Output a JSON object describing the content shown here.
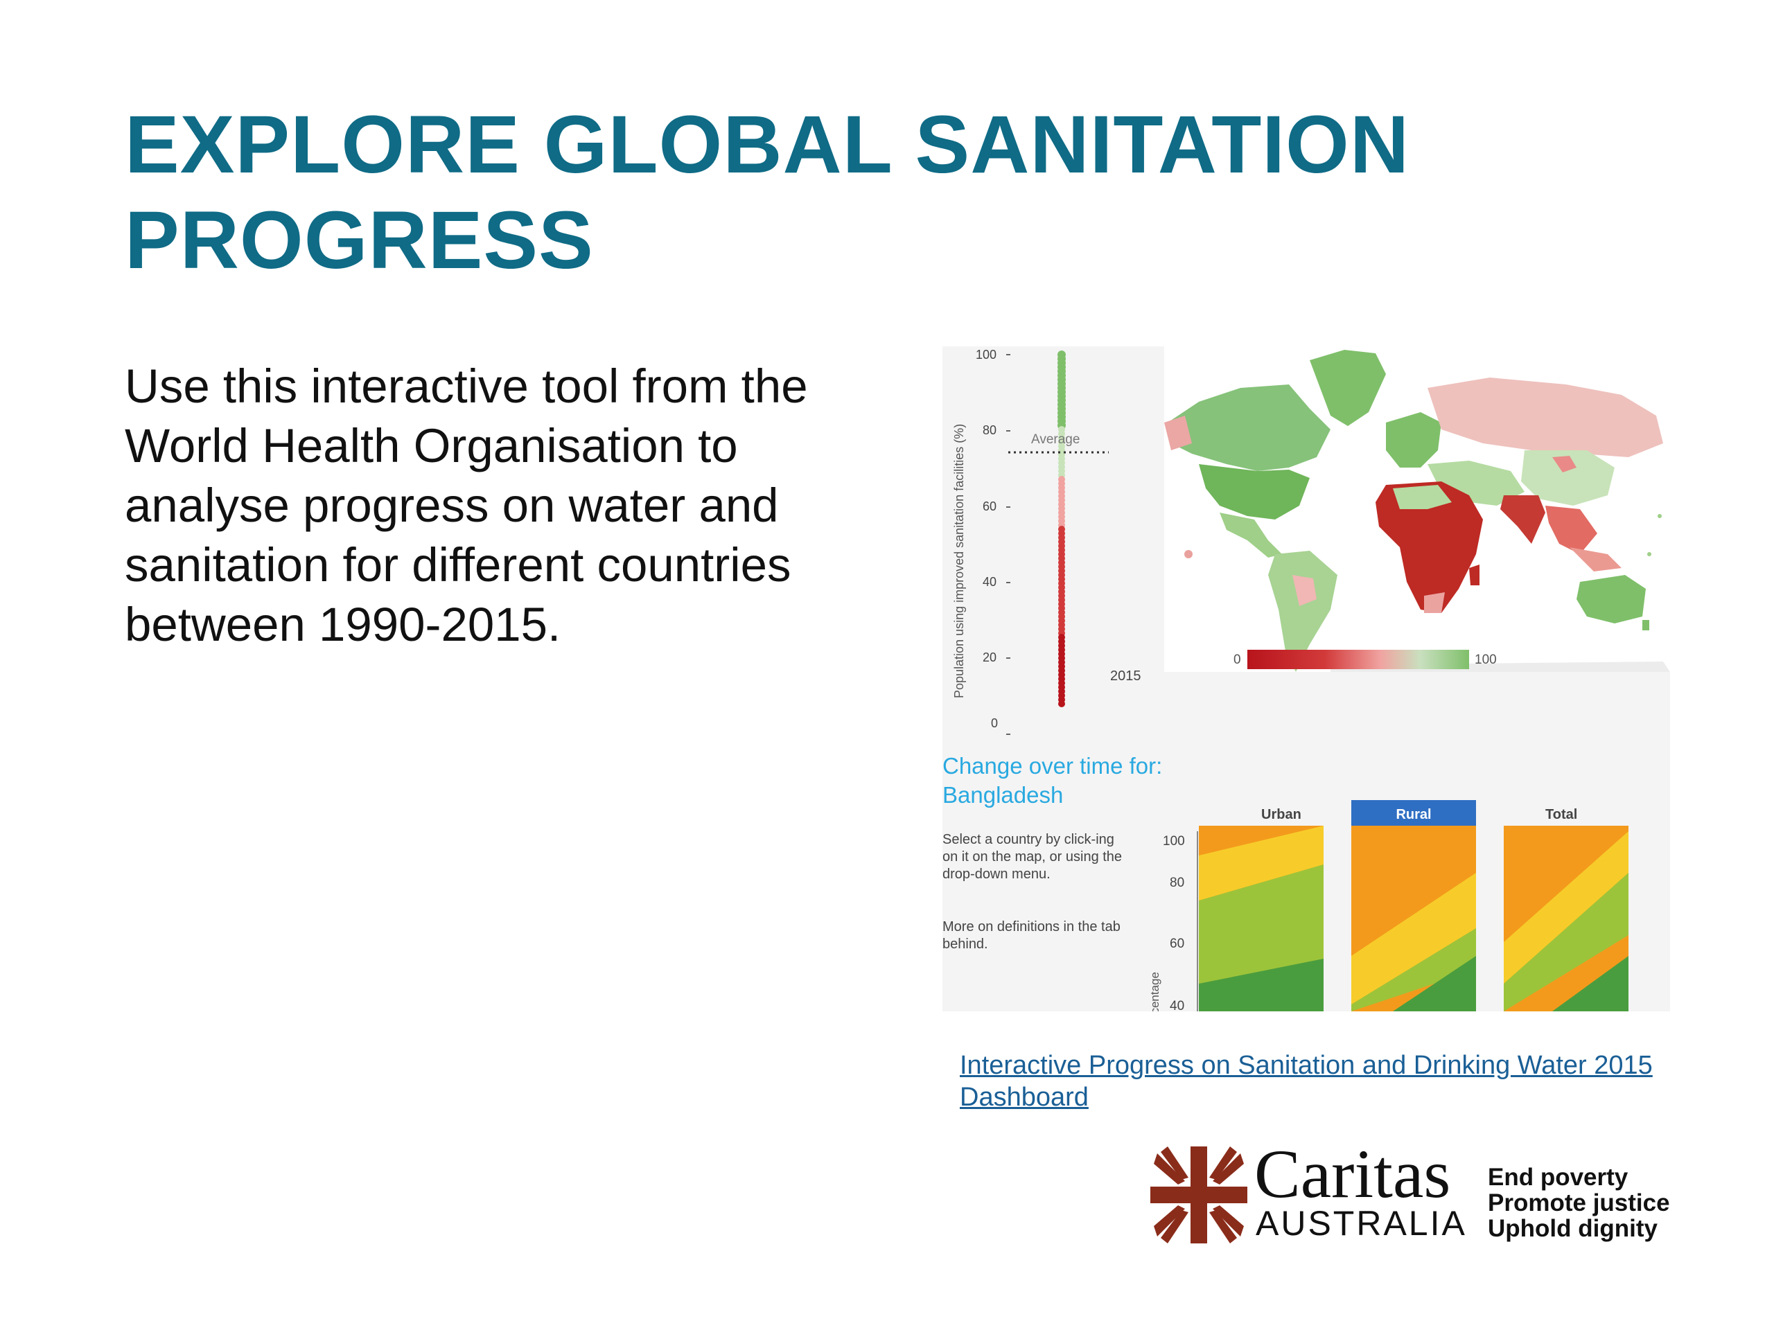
{
  "slide": {
    "title_line1": "EXPLORE GLOBAL SANITATION",
    "title_line2": "PROGRESS",
    "body": "Use this interactive tool from the World Health Organisation to analyse progress on water and sanitation for different countries between 1990-2015.",
    "link_text": "Interactive Progress on Sanitation and Drinking Water 2015 Dashboard"
  },
  "dashboard": {
    "strip": {
      "ylabel": "Population using improved sanitation facilities (%)",
      "ticks": [
        "100",
        "80",
        "60",
        "40",
        "20",
        "0"
      ],
      "average_label": "Average",
      "year_label": "2015"
    },
    "map": {
      "scale_min": "0",
      "scale_max": "100"
    },
    "change": {
      "title_line1": "Change over time for:",
      "title_line2": "Bangladesh",
      "instructions": "Select a country by click-ing on it on the map, or using the drop-down menu.",
      "definitions": "More on definitions in the tab behind.",
      "ylabel": "Percentage",
      "yticks": [
        "100",
        "80",
        "60",
        "40"
      ],
      "panels": [
        "Urban",
        "Rural",
        "Total"
      ],
      "selected_panel": "Rural"
    },
    "colors": {
      "orange": "#f39a1c",
      "yellow": "#f7cc2a",
      "light_green": "#9cc43a",
      "green": "#4a9d3e",
      "selected_tab": "#2f6fc3",
      "low_red": "#b8141c",
      "high_green": "#7fbf6a"
    }
  },
  "logo": {
    "name": "Caritas",
    "country": "AUSTRALIA",
    "tagline": [
      "End poverty",
      "Promote justice",
      "Uphold dignity"
    ]
  }
}
